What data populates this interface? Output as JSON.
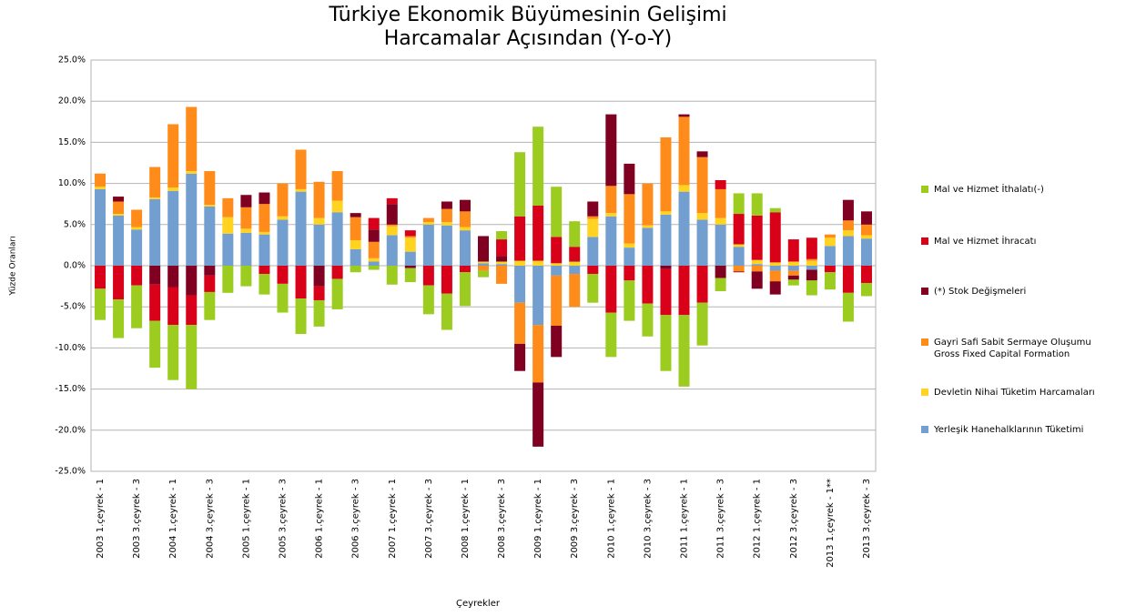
{
  "chart_data": {
    "type": "stacked_bar",
    "title": "Türkiye Ekonomik Büyümesinin Gelişimi\nHarcamalar Açısından (Y-o-Y)",
    "x_label": "Çeyrekler",
    "y_label": "Yüzde Oranları",
    "categories": [
      "2003 1.çeyrek - 1",
      null,
      "2003 3.çeyrek - 3",
      null,
      "2004 1.çeyrek - 1",
      null,
      "2004 3.çeyrek - 3",
      null,
      "2005 1.çeyrek - 1",
      null,
      "2005 3.çeyrek - 3",
      null,
      "2006 1.çeyrek - 1",
      null,
      "2006 3.çeyrek - 3",
      null,
      "2007 1.çeyrek - 1",
      null,
      "2007 3.çeyrek - 3",
      null,
      "2008 1.çeyrek - 1",
      null,
      "2008 3.çeyrek - 3",
      null,
      "2009 1.çeyrek - 1",
      null,
      "2009 3.çeyrek - 3",
      null,
      "2010 1.çeyrek - 1",
      null,
      "2010 3.çeyrek - 3",
      null,
      "2011 1.çeyrek - 1",
      null,
      "2011 3.çeyrek - 3",
      null,
      "2012 1.çeyrek - 1",
      null,
      "2012 3.çeyrek - 3",
      null,
      "2013 1.çeyrek - 1**",
      null,
      "2013 3.çeyrek - 3"
    ],
    "series": [
      {
        "name": "Yerleşik Hanehalklarının Tüketimi",
        "color": "#729fcf",
        "values": [
          9.3,
          6.1,
          4.4,
          8.1,
          9.1,
          11.2,
          7.2,
          3.9,
          4.0,
          3.8,
          5.6,
          9.0,
          5.0,
          6.5,
          2.0,
          0.5,
          3.7,
          1.7,
          5.0,
          4.9,
          4.3,
          0.3,
          0.2,
          -4.5,
          -7.2,
          -1.2,
          -1.0,
          3.5,
          6.0,
          2.2,
          4.6,
          6.2,
          9.0,
          5.6,
          5.0,
          2.3,
          0.2,
          -0.6,
          -0.6,
          -0.5,
          2.4,
          3.6,
          3.3
        ]
      },
      {
        "name": "Devletin Nihai Tüketim Harcamaları",
        "color": "#ffd320",
        "values": [
          0.3,
          0.2,
          0.3,
          0.2,
          0.4,
          0.3,
          0.2,
          2.0,
          0.5,
          0.3,
          0.4,
          0.3,
          0.8,
          1.4,
          1.1,
          0.4,
          1.1,
          1.7,
          0.3,
          0.4,
          0.4,
          0.2,
          0.3,
          0.6,
          0.6,
          0.3,
          0.5,
          2.2,
          0.4,
          0.5,
          0.3,
          0.4,
          0.8,
          0.8,
          0.8,
          0.3,
          0.5,
          0.4,
          0.5,
          0.6,
          1.0,
          0.7,
          0.4
        ]
      },
      {
        "name": "Gayri Safi Sabit Sermaye Oluşumu\nGross Fixed Capital Formation",
        "color": "#ff8c1a",
        "values": [
          1.6,
          1.5,
          2.1,
          3.7,
          7.7,
          7.8,
          4.1,
          2.3,
          2.6,
          3.4,
          4.0,
          4.8,
          4.4,
          3.6,
          2.8,
          2.0,
          0.2,
          0.2,
          0.5,
          1.6,
          1.9,
          -0.6,
          -2.2,
          -5.0,
          -7.0,
          -6.1,
          -4.0,
          0.3,
          3.3,
          6.0,
          5.1,
          9.0,
          8.3,
          6.8,
          3.5,
          -0.7,
          -0.7,
          -1.3,
          -0.6,
          0.2,
          0.4,
          1.2,
          1.3
        ]
      },
      {
        "name": "(*) Stok Değişmeleri",
        "color": "#7f0020",
        "values": [
          0,
          0.6,
          0,
          -2.3,
          -2.6,
          -3.6,
          -1.2,
          0,
          1.5,
          1.4,
          0,
          0,
          -2.5,
          0,
          0.5,
          1.5,
          2.5,
          -0.3,
          0,
          0.9,
          1.4,
          3.1,
          0.7,
          -3.3,
          -7.8,
          -3.8,
          0.1,
          1.8,
          8.7,
          3.7,
          0,
          -0.4,
          0.3,
          0.7,
          -1.5,
          -0.1,
          -2.1,
          -1.6,
          -0.5,
          -1.3,
          0,
          2.5,
          1.6
        ]
      },
      {
        "name": "Mal ve Hizmet İhracatı",
        "color": "#d9001a",
        "values": [
          -2.8,
          -4.1,
          -2.4,
          -4.4,
          -4.6,
          -3.6,
          -2.0,
          0,
          0,
          -1.0,
          -2.2,
          -4.0,
          -1.7,
          -1.6,
          0,
          1.4,
          0.7,
          0.7,
          -2.4,
          -3.4,
          -0.8,
          0,
          2.0,
          5.4,
          6.7,
          3.2,
          1.7,
          -1.0,
          -5.7,
          -1.8,
          -4.6,
          -5.6,
          -6.0,
          -4.5,
          1.1,
          3.7,
          5.4,
          6.1,
          2.7,
          2.6,
          -0.8,
          -3.3,
          -2.1
        ]
      },
      {
        "name": "Mal ve Hizmet İthalatı(-)",
        "color": "#9bcc1f",
        "values": [
          -3.8,
          -4.7,
          -5.2,
          -5.7,
          -6.7,
          -7.8,
          -3.4,
          -3.3,
          -2.5,
          -2.5,
          -3.5,
          -4.3,
          -3.2,
          -3.7,
          -0.8,
          -0.5,
          -2.3,
          -1.7,
          -3.5,
          -4.4,
          -4.1,
          -0.8,
          1.0,
          7.8,
          9.6,
          6.1,
          3.1,
          -3.5,
          -5.4,
          -4.9,
          -4.0,
          -6.8,
          -8.7,
          -5.2,
          -1.6,
          2.5,
          2.7,
          0.5,
          -0.7,
          -1.8,
          -2.1,
          -3.5,
          -1.6
        ]
      }
    ],
    "ylim": [
      -25,
      25
    ],
    "yticks": [
      {
        "value": -25,
        "label": "-25.0%"
      },
      {
        "value": -20,
        "label": "-20.0%"
      },
      {
        "value": -15,
        "label": "-15.0%"
      },
      {
        "value": -10,
        "label": "-10.0%"
      },
      {
        "value": -5,
        "label": "-5.0%"
      },
      {
        "value": 0,
        "label": "0.0%"
      },
      {
        "value": 5,
        "label": "5.0%"
      },
      {
        "value": 10,
        "label": "10.0%"
      },
      {
        "value": 15,
        "label": "15.0%"
      },
      {
        "value": 20,
        "label": "20.0%"
      },
      {
        "value": 25,
        "label": "25.0%"
      }
    ],
    "grid": true,
    "legend": "right"
  }
}
